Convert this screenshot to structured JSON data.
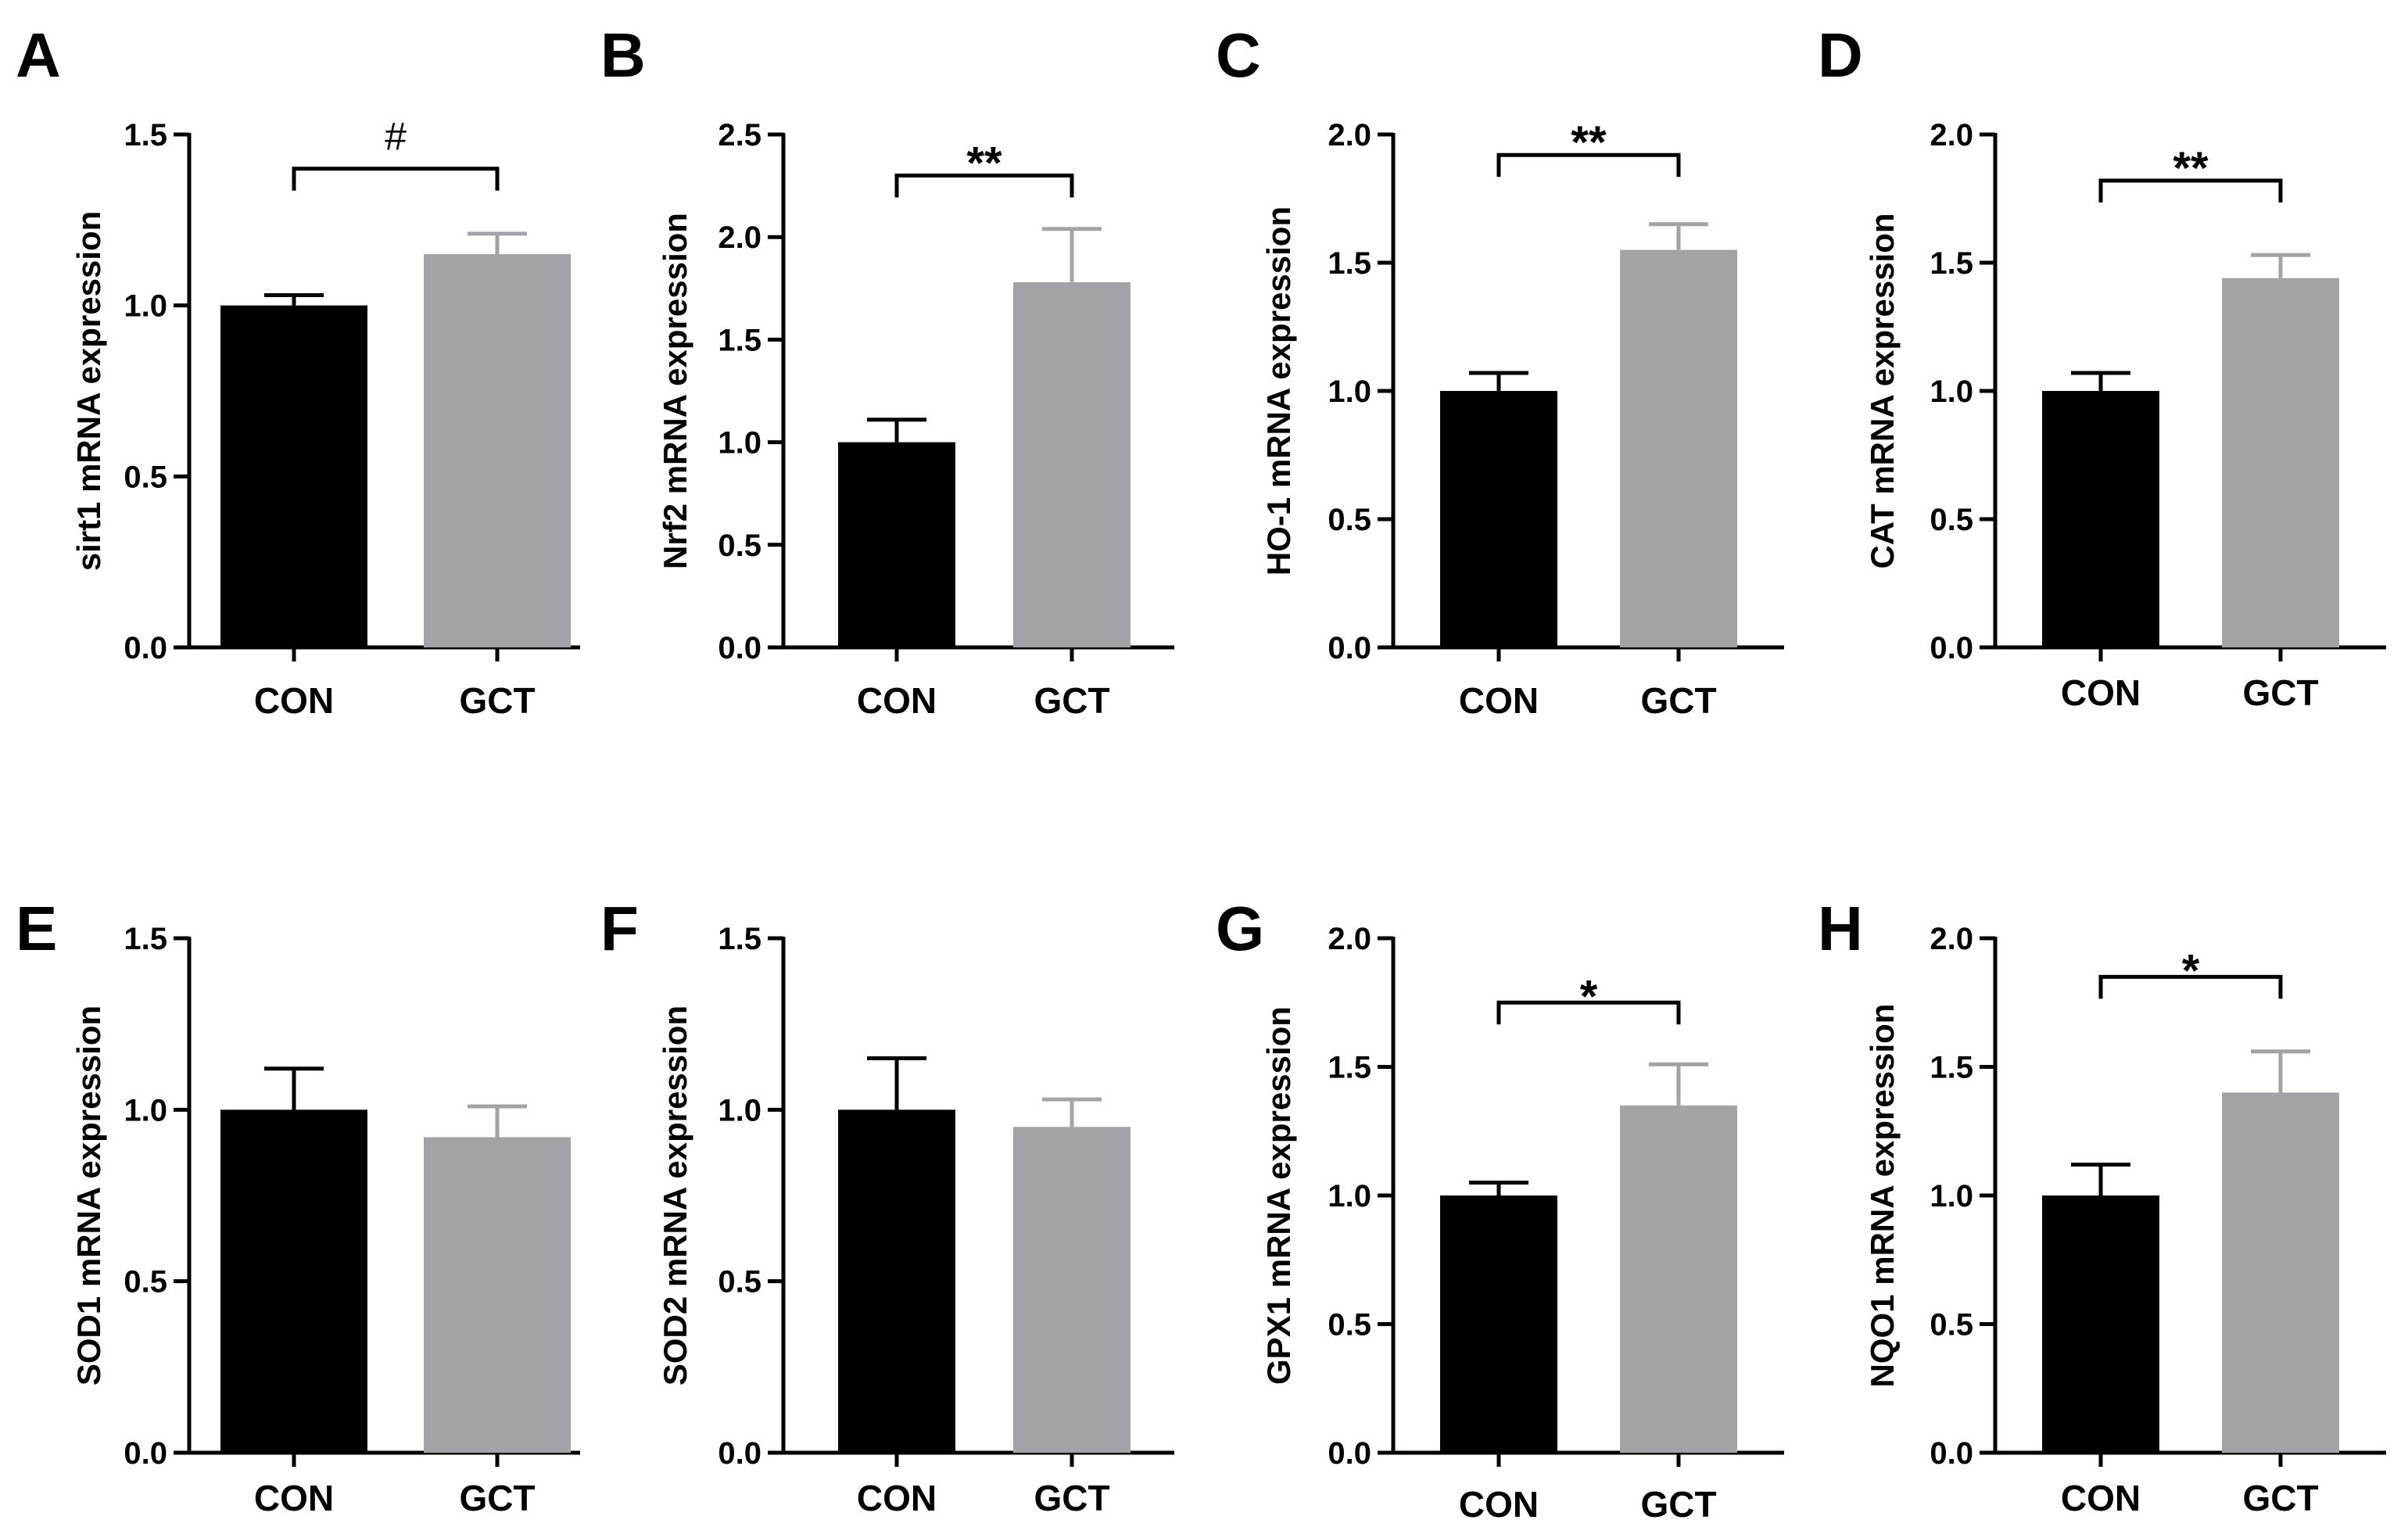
{
  "chart_data": [
    {
      "type": "bar",
      "panel": "A",
      "title": "",
      "xlabel": "",
      "ylabel": "sirt1 mRNA expression",
      "categories": [
        "CON",
        "GCT"
      ],
      "values": [
        1.0,
        1.15
      ],
      "errors": [
        0.03,
        0.06
      ],
      "colors": [
        "#000000",
        "#a3a3a7"
      ],
      "ylim": [
        0,
        1.5
      ],
      "yticks": [
        "0.0",
        "0.5",
        "1.0",
        "1.5"
      ],
      "significance": {
        "label": "#",
        "y": 1.4
      }
    },
    {
      "type": "bar",
      "panel": "B",
      "title": "",
      "xlabel": "",
      "ylabel": "Nrf2 mRNA expression",
      "categories": [
        "CON",
        "GCT"
      ],
      "values": [
        1.0,
        1.78
      ],
      "errors": [
        0.11,
        0.26
      ],
      "colors": [
        "#000000",
        "#a3a3a7"
      ],
      "ylim": [
        0,
        2.5
      ],
      "yticks": [
        "0.0",
        "0.5",
        "1.0",
        "1.5",
        "2.0",
        "2.5"
      ],
      "significance": {
        "label": "**",
        "y": 2.3
      }
    },
    {
      "type": "bar",
      "panel": "C",
      "title": "",
      "xlabel": "",
      "ylabel": "HO-1 mRNA expression",
      "categories": [
        "CON",
        "GCT"
      ],
      "values": [
        1.0,
        1.55
      ],
      "errors": [
        0.07,
        0.1
      ],
      "colors": [
        "#000000",
        "#a3a3a7"
      ],
      "ylim": [
        0,
        2.0
      ],
      "yticks": [
        "0.0",
        "0.5",
        "1.0",
        "1.5",
        "2.0"
      ],
      "significance": {
        "label": "**",
        "y": 1.92
      }
    },
    {
      "type": "bar",
      "panel": "D",
      "title": "",
      "xlabel": "",
      "ylabel": "CAT mRNA expression",
      "categories": [
        "CON",
        "GCT"
      ],
      "values": [
        1.0,
        1.44
      ],
      "errors": [
        0.07,
        0.09
      ],
      "colors": [
        "#000000",
        "#a3a3a7"
      ],
      "ylim": [
        0,
        2.0
      ],
      "yticks": [
        "0.0",
        "0.5",
        "1.0",
        "1.5",
        "2.0"
      ],
      "significance": {
        "label": "**",
        "y": 1.82
      }
    },
    {
      "type": "bar",
      "panel": "E",
      "title": "",
      "xlabel": "",
      "ylabel": "SOD1 mRNA expression",
      "categories": [
        "CON",
        "GCT"
      ],
      "values": [
        1.0,
        0.92
      ],
      "errors": [
        0.12,
        0.09
      ],
      "colors": [
        "#000000",
        "#a3a3a7"
      ],
      "ylim": [
        0,
        1.5
      ],
      "yticks": [
        "0.0",
        "0.5",
        "1.0",
        "1.5"
      ],
      "significance": null
    },
    {
      "type": "bar",
      "panel": "F",
      "title": "",
      "xlabel": "",
      "ylabel": "SOD2 mRNA expression",
      "categories": [
        "CON",
        "GCT"
      ],
      "values": [
        1.0,
        0.95
      ],
      "errors": [
        0.15,
        0.08
      ],
      "colors": [
        "#000000",
        "#a3a3a7"
      ],
      "ylim": [
        0,
        1.5
      ],
      "yticks": [
        "0.0",
        "0.5",
        "1.0",
        "1.5"
      ],
      "significance": null
    },
    {
      "type": "bar",
      "panel": "G",
      "title": "",
      "xlabel": "",
      "ylabel": "GPX1 mRNA expression",
      "categories": [
        "CON",
        "GCT"
      ],
      "values": [
        1.0,
        1.35
      ],
      "errors": [
        0.05,
        0.16
      ],
      "colors": [
        "#000000",
        "#a3a3a7"
      ],
      "ylim": [
        0,
        2.0
      ],
      "yticks": [
        "0.0",
        "0.5",
        "1.0",
        "1.5",
        "2.0"
      ],
      "significance": {
        "label": "*",
        "y": 1.75
      }
    },
    {
      "type": "bar",
      "panel": "H",
      "title": "",
      "xlabel": "",
      "ylabel": "NQO1 mRNA expression",
      "categories": [
        "CON",
        "GCT"
      ],
      "values": [
        1.0,
        1.4
      ],
      "errors": [
        0.12,
        0.16
      ],
      "colors": [
        "#000000",
        "#a3a3a7"
      ],
      "ylim": [
        0,
        2.0
      ],
      "yticks": [
        "0.0",
        "0.5",
        "1.0",
        "1.5",
        "2.0"
      ],
      "significance": {
        "label": "*",
        "y": 1.85
      }
    }
  ]
}
